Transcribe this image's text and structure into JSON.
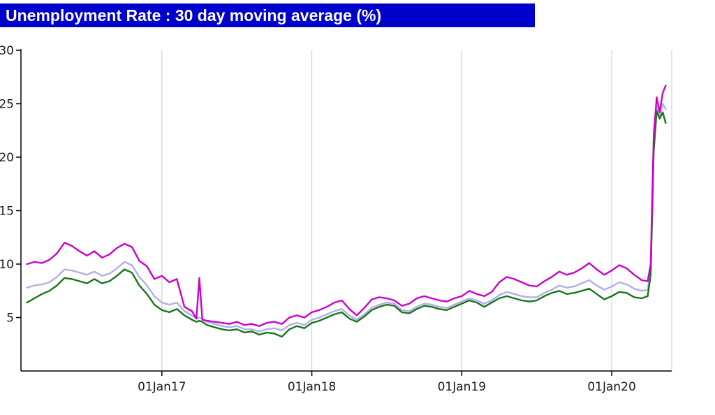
{
  "header": {
    "title": "Unemployment Rate : 30 day moving average (%)"
  },
  "colors": {
    "title_bar": "#0000cc",
    "title_text": "#ffffff",
    "grid": "#c9c9c9",
    "axis": "#000000",
    "tick_text": "#1a1a1a"
  },
  "chart_data": {
    "type": "line",
    "title": "Unemployment Rate : 30 day moving average (%)",
    "ylabel": "",
    "xlabel": "",
    "xlim": [
      2016.06,
      2020.4
    ],
    "ylim": [
      0,
      30
    ],
    "grid": "vertical",
    "legend_position": "none",
    "y_ticks": [
      5,
      10,
      15,
      20,
      25,
      30
    ],
    "x_ticks": [
      {
        "x": 2017,
        "label": "01Jan17"
      },
      {
        "x": 2018,
        "label": "01Jan18"
      },
      {
        "x": 2019,
        "label": "01Jan19"
      },
      {
        "x": 2020,
        "label": "01Jan20"
      }
    ],
    "x": [
      2016.1,
      2016.15,
      2016.2,
      2016.25,
      2016.3,
      2016.35,
      2016.4,
      2016.45,
      2016.5,
      2016.55,
      2016.6,
      2016.65,
      2016.7,
      2016.75,
      2016.8,
      2016.85,
      2016.9,
      2016.95,
      2017.0,
      2017.05,
      2017.1,
      2017.15,
      2017.2,
      2017.23,
      2017.25,
      2017.27,
      2017.3,
      2017.35,
      2017.4,
      2017.45,
      2017.5,
      2017.55,
      2017.6,
      2017.65,
      2017.7,
      2017.75,
      2017.8,
      2017.85,
      2017.9,
      2017.95,
      2018.0,
      2018.05,
      2018.1,
      2018.15,
      2018.2,
      2018.25,
      2018.3,
      2018.35,
      2018.4,
      2018.45,
      2018.5,
      2018.55,
      2018.6,
      2018.65,
      2018.7,
      2018.75,
      2018.8,
      2018.85,
      2018.9,
      2018.95,
      2019.0,
      2019.05,
      2019.1,
      2019.15,
      2019.2,
      2019.25,
      2019.3,
      2019.35,
      2019.4,
      2019.45,
      2019.5,
      2019.55,
      2019.6,
      2019.65,
      2019.7,
      2019.75,
      2019.8,
      2019.85,
      2019.9,
      2019.95,
      2020.0,
      2020.05,
      2020.1,
      2020.15,
      2020.2,
      2020.24,
      2020.26,
      2020.28,
      2020.3,
      2020.32,
      2020.34,
      2020.36
    ],
    "series": [
      {
        "name": "lavender-line",
        "color": "#b0b0e6",
        "values": [
          7.8,
          8.0,
          8.1,
          8.3,
          8.8,
          9.5,
          9.4,
          9.2,
          9.0,
          9.3,
          8.9,
          9.1,
          9.6,
          10.2,
          9.9,
          8.8,
          8.0,
          7.0,
          6.4,
          6.2,
          6.4,
          5.6,
          5.2,
          4.9,
          5.0,
          4.9,
          4.6,
          4.4,
          4.2,
          4.1,
          4.2,
          3.9,
          3.9,
          3.7,
          3.9,
          4.0,
          3.8,
          4.3,
          4.5,
          4.3,
          4.8,
          5.0,
          5.3,
          5.6,
          5.8,
          5.2,
          4.8,
          5.3,
          5.9,
          6.2,
          6.4,
          6.3,
          5.7,
          5.6,
          6.0,
          6.3,
          6.2,
          6.0,
          5.9,
          6.2,
          6.5,
          6.8,
          6.6,
          6.3,
          6.6,
          7.1,
          7.4,
          7.2,
          7.0,
          6.9,
          6.9,
          7.3,
          7.6,
          8.0,
          7.8,
          7.9,
          8.2,
          8.5,
          8.0,
          7.6,
          7.9,
          8.3,
          8.1,
          7.7,
          7.5,
          7.6,
          9.5,
          21.0,
          24.8,
          23.8,
          25.0,
          24.5
        ]
      },
      {
        "name": "green-line",
        "color": "#1a751a",
        "values": [
          6.4,
          6.8,
          7.2,
          7.5,
          8.0,
          8.7,
          8.6,
          8.4,
          8.2,
          8.6,
          8.2,
          8.4,
          8.9,
          9.5,
          9.2,
          8.0,
          7.2,
          6.2,
          5.7,
          5.5,
          5.8,
          5.2,
          4.8,
          4.6,
          4.7,
          4.6,
          4.3,
          4.1,
          3.9,
          3.8,
          3.9,
          3.6,
          3.7,
          3.4,
          3.6,
          3.5,
          3.2,
          3.9,
          4.2,
          4.0,
          4.5,
          4.7,
          5.0,
          5.3,
          5.5,
          4.9,
          4.6,
          5.1,
          5.7,
          6.0,
          6.2,
          6.1,
          5.5,
          5.4,
          5.8,
          6.1,
          6.0,
          5.8,
          5.7,
          6.0,
          6.3,
          6.6,
          6.4,
          6.0,
          6.4,
          6.8,
          7.0,
          6.8,
          6.6,
          6.5,
          6.6,
          7.0,
          7.3,
          7.5,
          7.2,
          7.3,
          7.5,
          7.7,
          7.2,
          6.7,
          7.0,
          7.4,
          7.3,
          6.9,
          6.8,
          7.0,
          9.0,
          20.5,
          24.3,
          23.6,
          24.2,
          23.2
        ]
      },
      {
        "name": "magenta-line",
        "color": "#cc00cc",
        "values": [
          10.0,
          10.2,
          10.1,
          10.4,
          11.0,
          12.0,
          11.7,
          11.2,
          10.8,
          11.2,
          10.6,
          10.9,
          11.5,
          11.9,
          11.6,
          10.3,
          9.8,
          8.6,
          8.9,
          8.3,
          8.6,
          6.0,
          5.6,
          4.9,
          8.7,
          4.8,
          4.7,
          4.6,
          4.5,
          4.4,
          4.6,
          4.3,
          4.4,
          4.2,
          4.5,
          4.6,
          4.4,
          5.0,
          5.2,
          5.0,
          5.5,
          5.7,
          6.0,
          6.4,
          6.6,
          5.8,
          5.2,
          5.9,
          6.7,
          6.9,
          6.8,
          6.6,
          6.1,
          6.3,
          6.8,
          7.0,
          6.8,
          6.6,
          6.5,
          6.8,
          7.0,
          7.5,
          7.2,
          7.0,
          7.4,
          8.3,
          8.8,
          8.6,
          8.3,
          8.0,
          7.9,
          8.4,
          8.8,
          9.3,
          9.0,
          9.2,
          9.6,
          10.1,
          9.5,
          9.0,
          9.4,
          9.9,
          9.6,
          9.0,
          8.5,
          8.4,
          10.0,
          22.0,
          25.6,
          24.2,
          26.0,
          26.7
        ]
      }
    ]
  }
}
